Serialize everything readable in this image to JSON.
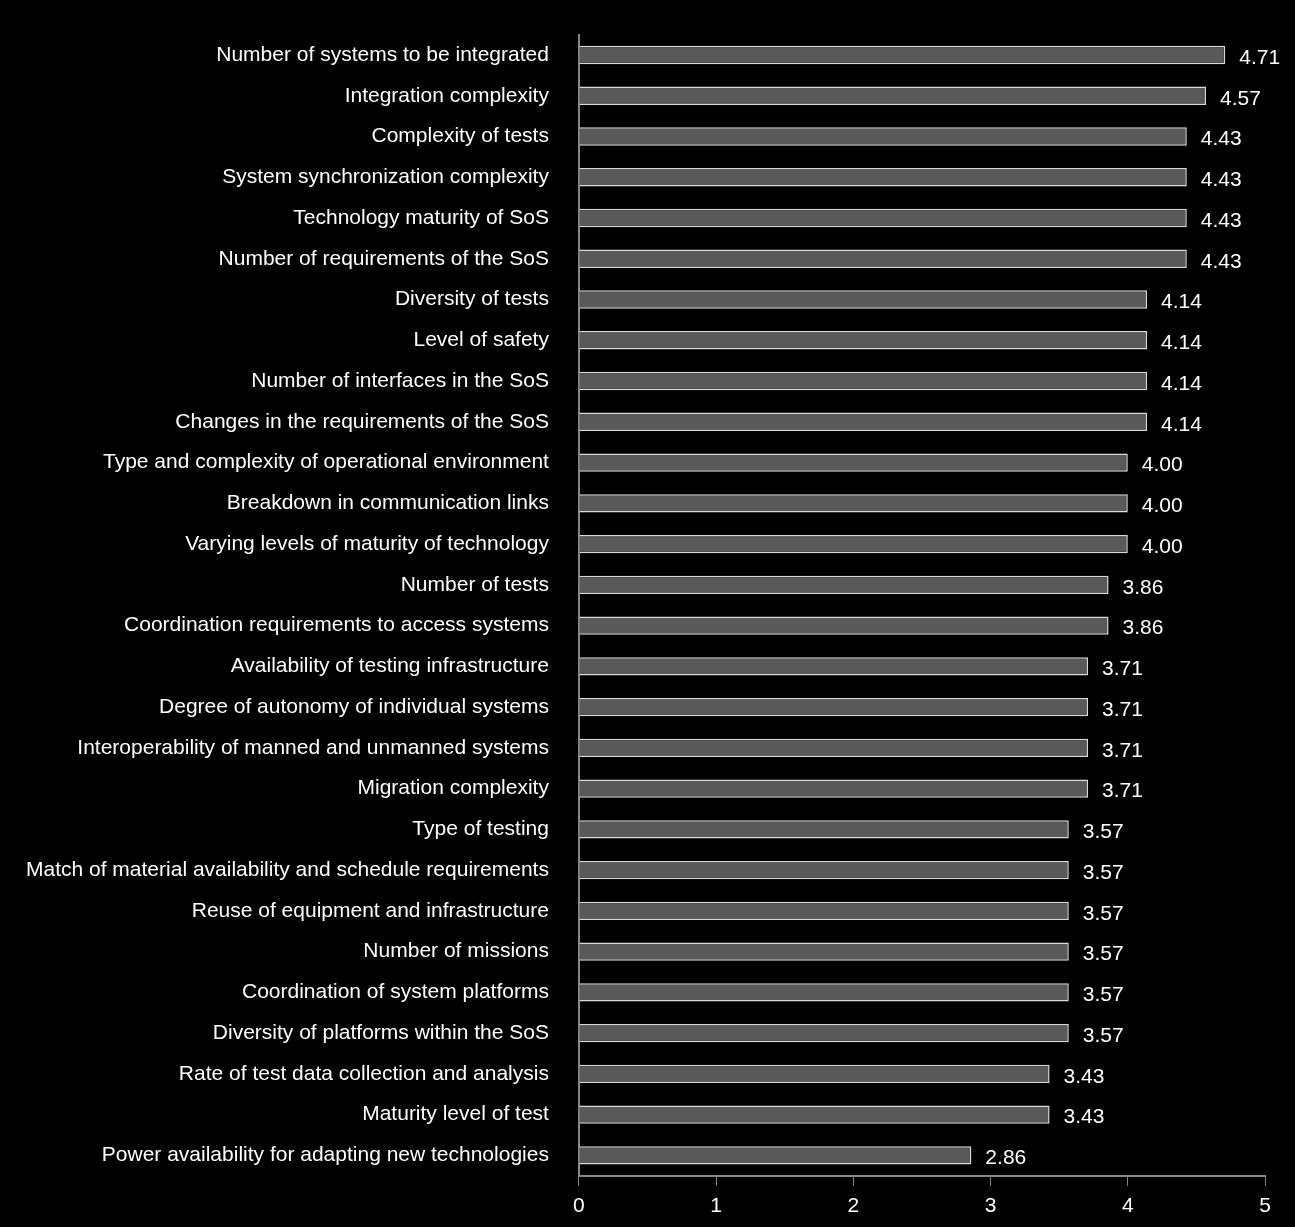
{
  "chart_data": {
    "type": "bar",
    "orientation": "horizontal",
    "categories": [
      "Number of systems to be integrated",
      "Integration complexity",
      "Complexity of tests",
      "System synchronization complexity",
      "Technology maturity of SoS",
      "Number of requirements of the SoS",
      "Diversity of tests",
      "Level of safety",
      "Number of interfaces in the SoS",
      "Changes in the requirements of the SoS",
      "Type and complexity of operational environment",
      "Breakdown in communication links",
      "Varying levels of maturity of technology",
      "Number of tests",
      "Coordination requirements to access systems",
      "Availability of testing infrastructure",
      "Degree of autonomy of individual systems",
      "Interoperability of manned and unmanned systems",
      "Migration complexity",
      "Type of testing",
      "Match of material availability and schedule requirements",
      "Reuse of equipment and infrastructure",
      "Number of missions",
      "Coordination of system platforms",
      "Diversity of platforms within the SoS",
      "Rate of test data collection and analysis",
      "Maturity level of test",
      "Power availability for adapting new technologies"
    ],
    "values": [
      4.71,
      4.57,
      4.43,
      4.43,
      4.43,
      4.43,
      4.14,
      4.14,
      4.14,
      4.14,
      4.0,
      4.0,
      4.0,
      3.86,
      3.86,
      3.71,
      3.71,
      3.71,
      3.71,
      3.57,
      3.57,
      3.57,
      3.57,
      3.57,
      3.57,
      3.43,
      3.43,
      2.86
    ],
    "value_labels": [
      "4.71",
      "4.57",
      "4.43",
      "4.43",
      "4.43",
      "4.43",
      "4.14",
      "4.14",
      "4.14",
      "4.14",
      "4.00",
      "4.00",
      "4.00",
      "3.86",
      "3.86",
      "3.71",
      "3.71",
      "3.71",
      "3.71",
      "3.57",
      "3.57",
      "3.57",
      "3.57",
      "3.57",
      "3.57",
      "3.43",
      "3.43",
      "2.86"
    ],
    "color": "#595959",
    "xlim": [
      0,
      5
    ],
    "xticks": [
      0,
      1,
      2,
      3,
      4,
      5
    ],
    "grid": false,
    "legend": false
  }
}
